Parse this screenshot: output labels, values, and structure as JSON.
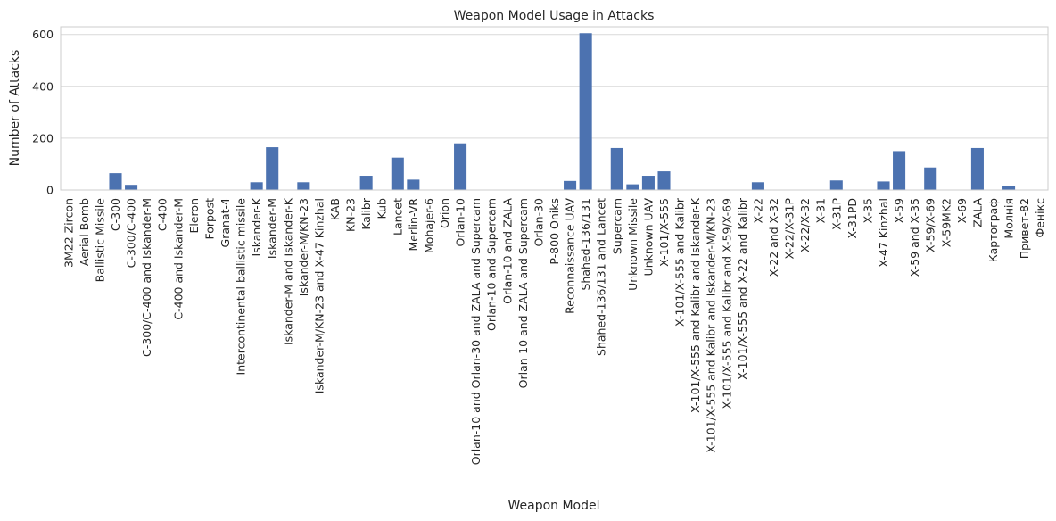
{
  "chart_data": {
    "type": "bar",
    "title": "Weapon Model Usage in Attacks",
    "xlabel": "Weapon Model",
    "ylabel": "Number of Attacks",
    "ylim": [
      0,
      630
    ],
    "yticks": [
      0,
      200,
      400,
      600
    ],
    "grid": true,
    "bar_color": "#4c72b0",
    "categories": [
      "3M22 Zircon",
      "Aerial Bomb",
      "Ballistic Missile",
      "C-300",
      "C-300/C-400",
      "C-300/C-400 and Iskander-M",
      "C-400",
      "C-400 and Iskander-M",
      "Eleron",
      "Forpost",
      "Granat-4",
      "Intercontinental ballistic missile",
      "Iskander-K",
      "Iskander-M",
      "Iskander-M and Iskander-K",
      "Iskander-M/KN-23",
      "Iskander-M/KN-23 and X-47 Kinzhal",
      "KAB",
      "KN-23",
      "Kalibr",
      "Kub",
      "Lancet",
      "Merlin-VR",
      "Mohajer-6",
      "Orion",
      "Orlan-10",
      "Orlan-10 and Orlan-30 and ZALA and Supercam",
      "Orlan-10 and Supercam",
      "Orlan-10 and ZALA",
      "Orlan-10 and ZALA and Supercam",
      "Orlan-30",
      "P-800 Oniks",
      "Reconnaissance UAV",
      "Shahed-136/131",
      "Shahed-136/131 and Lancet",
      "Supercam",
      "Unknown Missile",
      "Unknown UAV",
      "X-101/X-555",
      "X-101/X-555 and Kalibr",
      "X-101/X-555 and Kalibr and Iskander-K",
      "X-101/X-555 and Kalibr and Iskander-M/KN-23",
      "X-101/X-555 and Kalibr and X-59/X-69",
      "X-101/X-555 and X-22 and Kalibr",
      "X-22",
      "X-22 and X-32",
      "X-22/X-31P",
      "X-22/X-32",
      "X-31",
      "X-31P",
      "X-31PD",
      "X-35",
      "X-47 Kinzhal",
      "X-59",
      "X-59 and X-35",
      "X-59/X-69",
      "X-59MK2",
      "X-69",
      "ZALA",
      "Картограф",
      "Молнія",
      "Привет-82",
      "Фенікс"
    ],
    "values": [
      1,
      1,
      1,
      65,
      20,
      1,
      1,
      1,
      1,
      1,
      1,
      1,
      30,
      165,
      1,
      30,
      1,
      1,
      1,
      55,
      1,
      125,
      40,
      1,
      1,
      180,
      1,
      1,
      1,
      1,
      1,
      1,
      35,
      605,
      1,
      162,
      22,
      55,
      72,
      1,
      1,
      1,
      1,
      1,
      30,
      1,
      1,
      1,
      1,
      37,
      1,
      1,
      33,
      150,
      1,
      87,
      1,
      1,
      162,
      1,
      15,
      1,
      1
    ]
  }
}
